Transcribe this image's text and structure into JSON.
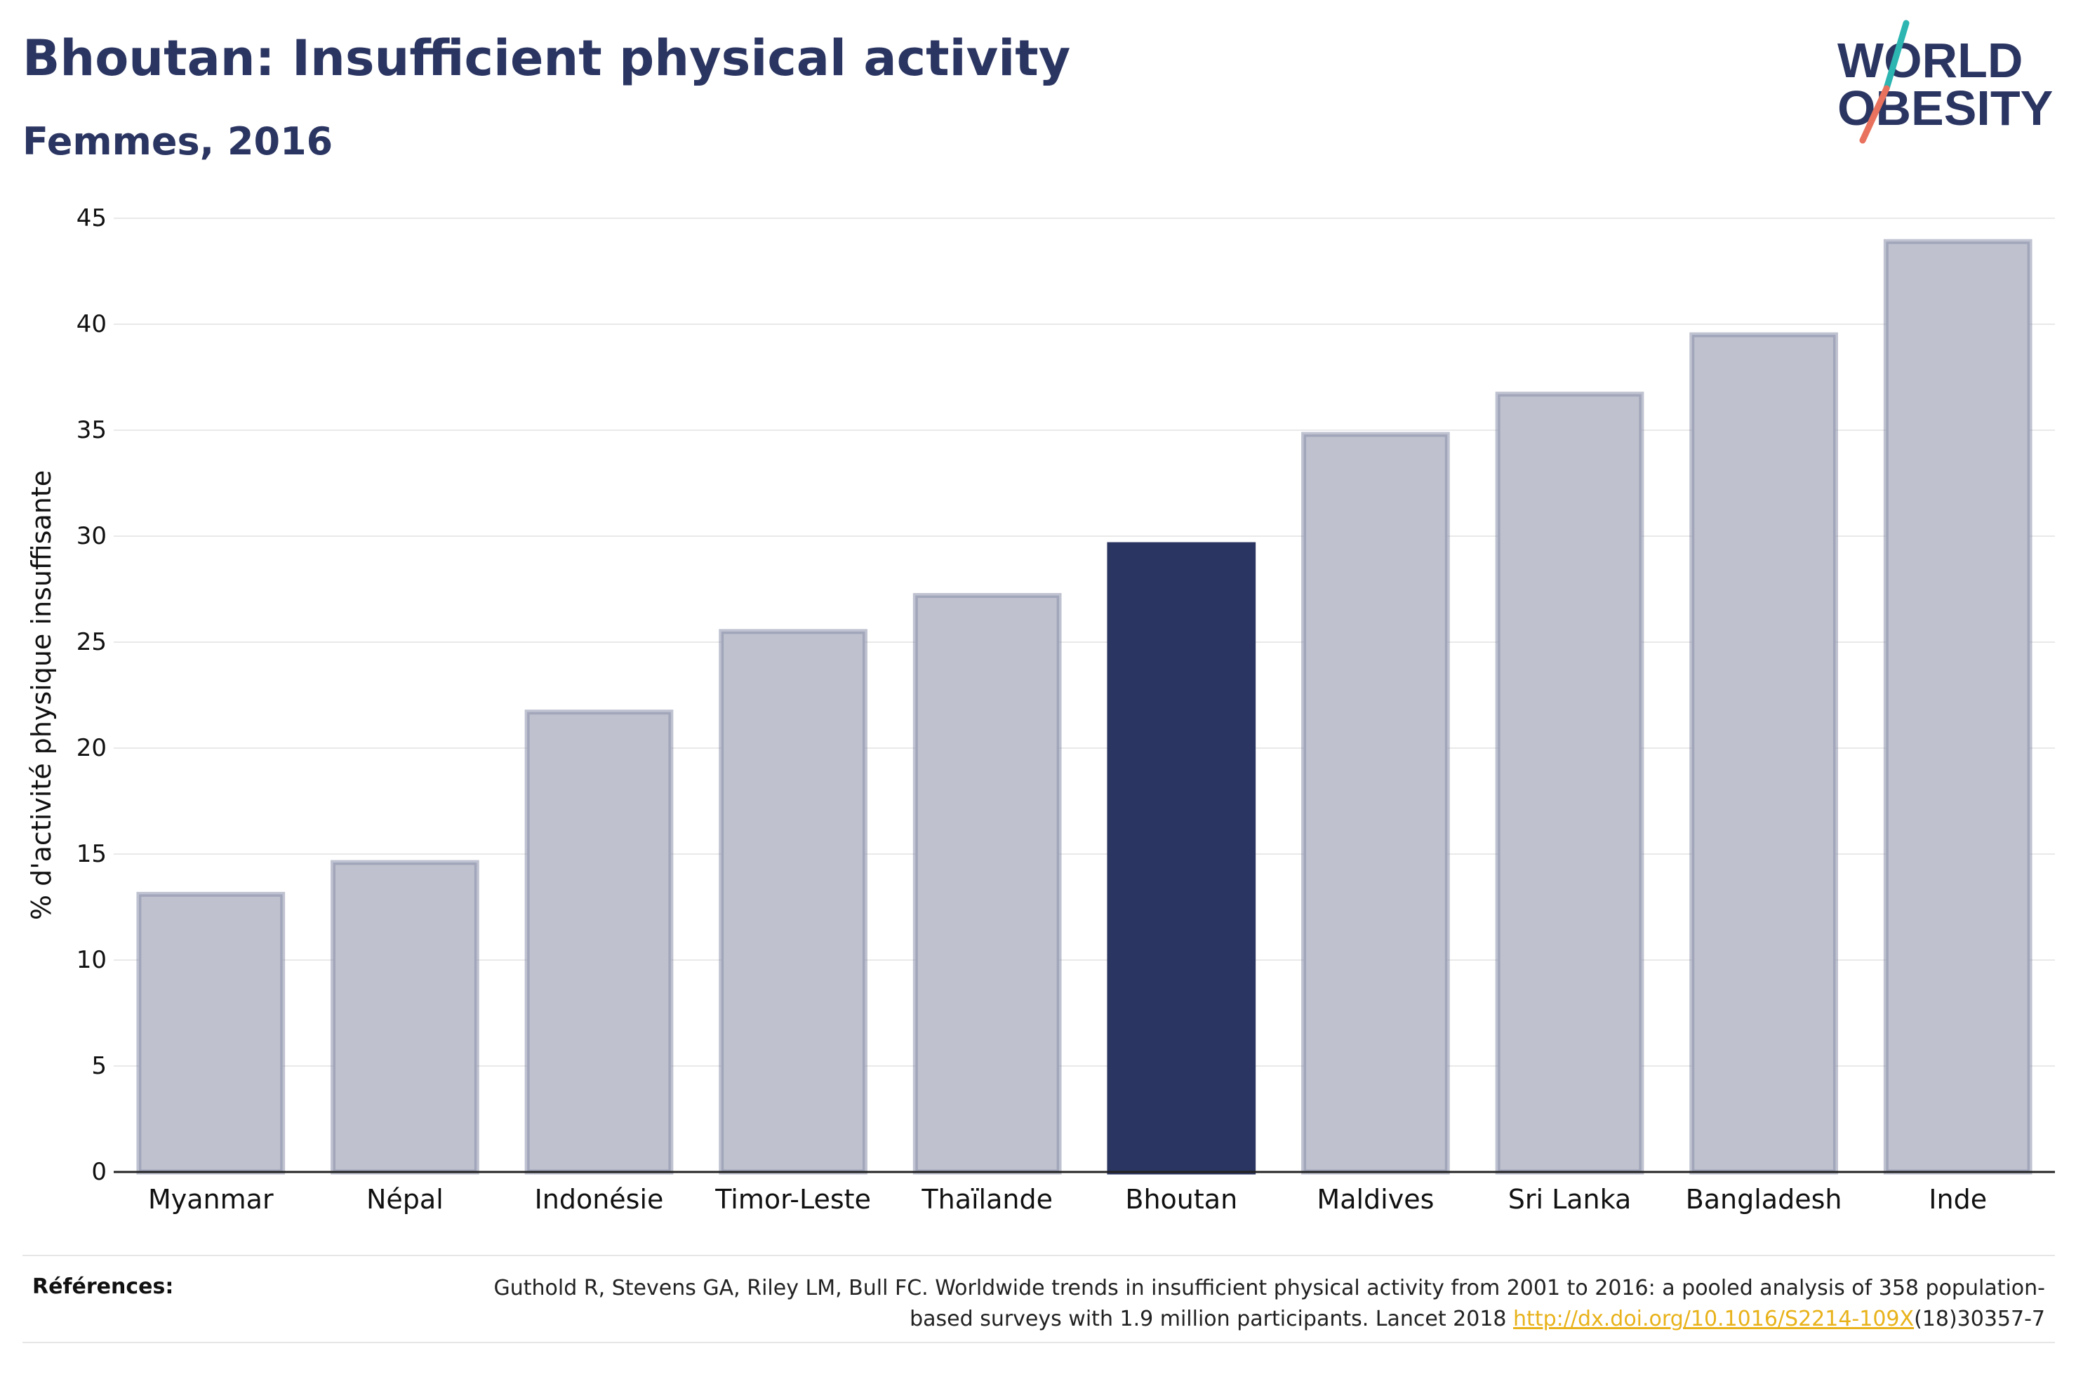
{
  "header": {
    "title": "Bhoutan: Insufficient physical activity",
    "subtitle": "Femmes, 2016"
  },
  "logo": {
    "line1": "WORLD",
    "line2": "OBESITY",
    "colors": {
      "text": "#2b3561",
      "slash_top": "#2cb5b1",
      "slash_bottom": "#e8725e"
    }
  },
  "chart_data": {
    "type": "bar",
    "title": "",
    "xlabel": "",
    "ylabel": "% d'activité physique insuffisante",
    "categories": [
      "Myanmar",
      "Népal",
      "Indonésie",
      "Timor-Leste",
      "Thaïlande",
      "Bhoutan",
      "Maldives",
      "Sri Lanka",
      "Bangladesh",
      "Inde"
    ],
    "values": [
      13.1,
      14.6,
      21.7,
      25.5,
      27.2,
      29.6,
      34.8,
      36.7,
      39.5,
      43.9
    ],
    "highlight": "Bhoutan",
    "ylim": [
      0,
      45
    ],
    "yticks": [
      0,
      5,
      10,
      15,
      20,
      25,
      30,
      35,
      40,
      45
    ],
    "grid": true,
    "colors": {
      "bar": "#bfc2ce",
      "bar_border": "#8a90a9",
      "highlight": "#2b3561",
      "grid": "#e9e9e9",
      "axis": "#222222"
    }
  },
  "references": {
    "label": "Références:",
    "text_before": "Guthold R, Stevens GA, Riley LM, Bull FC. Worldwide trends in insufficient physical activity from 2001 to 2016: a pooled analysis of 358 population-based surveys with 1.9 million participants. Lancet 2018 ",
    "link": "http://dx.doi.org/10.1016/S2214-109X",
    "text_after": "(18)30357-7"
  }
}
